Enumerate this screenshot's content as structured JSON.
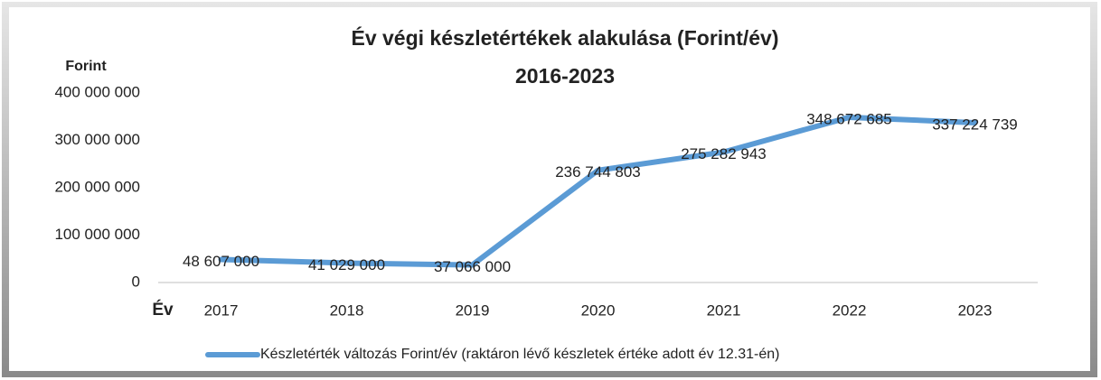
{
  "chart_data": {
    "type": "line",
    "title": "Év végi készletértékek alakulása (Forint/év)",
    "subtitle": "2016-2023",
    "y_label": "Forint",
    "x_label": "Év",
    "categories": [
      "2017",
      "2018",
      "2019",
      "2020",
      "2021",
      "2022",
      "2023"
    ],
    "series": [
      {
        "name": "Készletérték változás Forint/év (raktáron lévő készletek értéke adott év 12.31-én)",
        "color": "#5b9bd5",
        "values": [
          48607000,
          41029000,
          37066000,
          236744803,
          275282943,
          348672685,
          337224739
        ],
        "value_labels": [
          "48 607 000",
          "41 029 000",
          "37 066 000",
          "236 744 803",
          "275 282 943",
          "348 672 685",
          "337 224 739"
        ]
      }
    ],
    "ylim": [
      0,
      400000000
    ],
    "yticks": [
      0,
      {
        "value": 100000000,
        "label": "100 000 000"
      },
      {
        "value": 200000000,
        "label": "200 000 000"
      },
      {
        "value": 300000000,
        "label": "300 000 000"
      },
      {
        "value": 400000000,
        "label": "400 000 000"
      }
    ],
    "grid": false,
    "legend": "bottom"
  }
}
